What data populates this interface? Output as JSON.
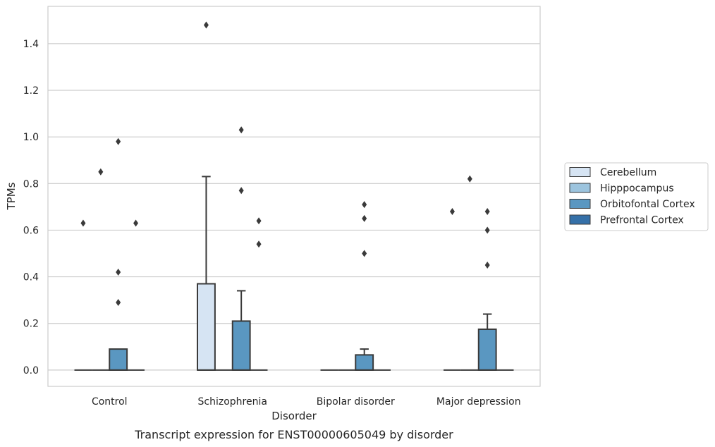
{
  "caption": "Transcript expression for ENST00000605049 by disorder",
  "chart_data": {
    "type": "box",
    "title": "",
    "xlabel": "Disorder",
    "ylabel": "TPMs",
    "ylim": [
      -0.07,
      1.56
    ],
    "y_ticks": [
      0.0,
      0.2,
      0.4,
      0.6,
      0.8,
      1.0,
      1.2,
      1.4
    ],
    "y_tick_labels": [
      "0.0",
      "0.2",
      "0.4",
      "0.6",
      "0.8",
      "1.0",
      "1.2",
      "1.4"
    ],
    "grid": "horizontal",
    "legend_position": "right",
    "categories": [
      "Control",
      "Schizophrenia",
      "Bipolar disorder",
      "Major depression"
    ],
    "series": [
      {
        "name": "Cerebellum",
        "color": "#d6e4f3",
        "boxes": [
          {
            "q1": 0,
            "median": 0,
            "q3": 0,
            "whislo": 0,
            "whishi": 0,
            "fliers": [
              0.63
            ]
          },
          {
            "q1": 0,
            "median": 0,
            "q3": 0.37,
            "whislo": 0,
            "whishi": 0.83,
            "fliers": [
              1.48
            ]
          },
          {
            "q1": 0,
            "median": 0,
            "q3": 0,
            "whislo": 0,
            "whishi": 0,
            "fliers": []
          },
          {
            "q1": 0,
            "median": 0,
            "q3": 0,
            "whislo": 0,
            "whishi": 0,
            "fliers": [
              0.68
            ]
          }
        ]
      },
      {
        "name": "Hipppocampus",
        "color": "#9cc4de",
        "boxes": [
          {
            "q1": 0,
            "median": 0,
            "q3": 0,
            "whislo": 0,
            "whishi": 0,
            "fliers": [
              0.85
            ]
          },
          {
            "q1": 0,
            "median": 0,
            "q3": 0,
            "whislo": 0,
            "whishi": 0,
            "fliers": []
          },
          {
            "q1": 0,
            "median": 0,
            "q3": 0,
            "whislo": 0,
            "whishi": 0,
            "fliers": []
          },
          {
            "q1": 0,
            "median": 0,
            "q3": 0,
            "whislo": 0,
            "whishi": 0,
            "fliers": [
              0.82
            ]
          }
        ]
      },
      {
        "name": "Orbitofontal Cortex",
        "color": "#5a97c1",
        "boxes": [
          {
            "q1": 0,
            "median": 0,
            "q3": 0.09,
            "whislo": 0,
            "whishi": 0.09,
            "fliers": [
              0.98,
              0.42,
              0.29
            ]
          },
          {
            "q1": 0,
            "median": 0,
            "q3": 0.21,
            "whislo": 0,
            "whishi": 0.34,
            "fliers": [
              1.03,
              0.77
            ]
          },
          {
            "q1": 0,
            "median": 0,
            "q3": 0.065,
            "whislo": 0,
            "whishi": 0.09,
            "fliers": [
              0.71,
              0.65,
              0.5
            ]
          },
          {
            "q1": 0,
            "median": 0,
            "q3": 0.175,
            "whislo": 0,
            "whishi": 0.24,
            "fliers": [
              0.68,
              0.6,
              0.45
            ]
          }
        ]
      },
      {
        "name": "Prefrontal Cortex",
        "color": "#3570a8",
        "boxes": [
          {
            "q1": 0,
            "median": 0,
            "q3": 0,
            "whislo": 0,
            "whishi": 0,
            "fliers": [
              0.63
            ]
          },
          {
            "q1": 0,
            "median": 0,
            "q3": 0,
            "whislo": 0,
            "whishi": 0,
            "fliers": [
              0.64,
              0.54
            ]
          },
          {
            "q1": 0,
            "median": 0,
            "q3": 0,
            "whislo": 0,
            "whishi": 0,
            "fliers": []
          },
          {
            "q1": 0,
            "median": 0,
            "q3": 0,
            "whislo": 0,
            "whishi": 0,
            "fliers": []
          }
        ]
      }
    ]
  }
}
